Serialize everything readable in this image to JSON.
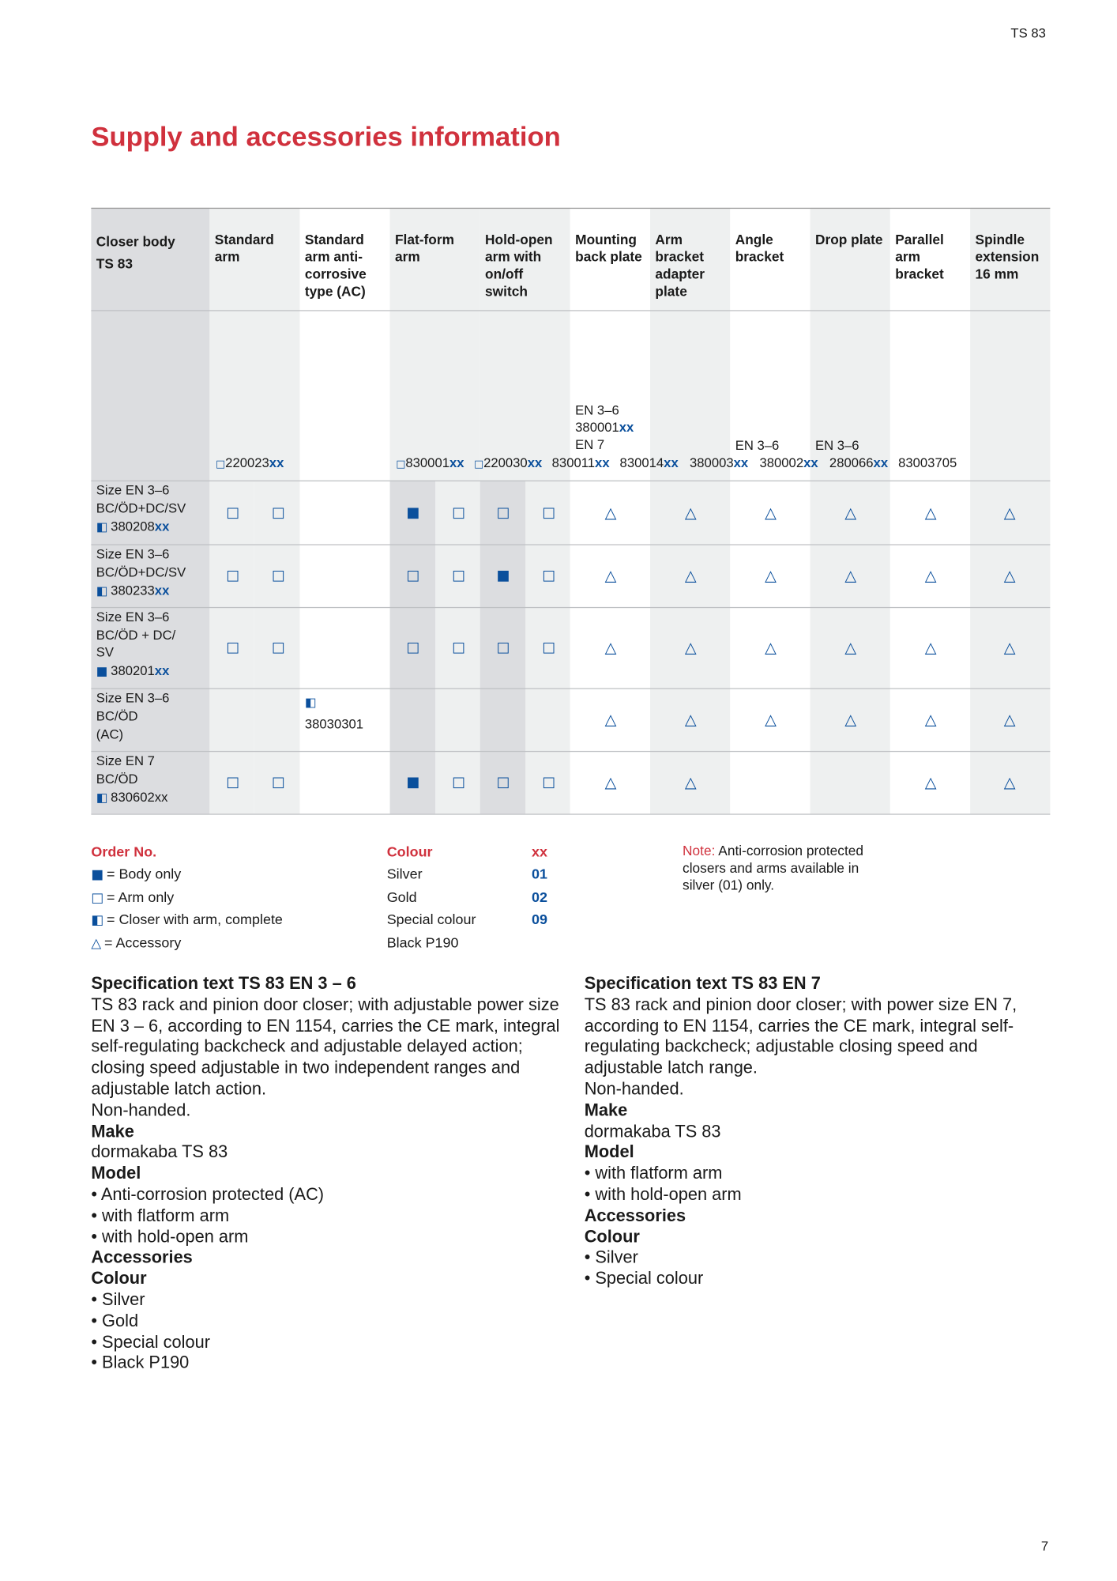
{
  "header": {
    "page_label": "TS 83",
    "page_number": "7"
  },
  "title": "Supply and accessories information",
  "table": {
    "headers": [
      [
        "Closer body",
        "TS 83"
      ],
      [
        "Standard",
        "arm"
      ],
      [
        "Standard",
        "arm anti-",
        "corrosive",
        "type (AC)"
      ],
      [
        "Flat-form",
        "arm"
      ],
      [
        "Hold-open",
        "arm with",
        "on/off",
        "switch"
      ],
      [
        "Mounting",
        "back plate"
      ],
      [
        "Arm",
        "bracket",
        "adapter",
        "plate"
      ],
      [
        "Angle",
        "bracket"
      ],
      [
        "Drop plate"
      ],
      [
        "Parallel",
        "arm",
        "bracket"
      ],
      [
        "Spindle",
        "extension",
        "16 mm"
      ]
    ],
    "variant_labels": [
      "EN 3–6",
      "380001",
      "xx",
      "EN 7",
      "EN 3–6",
      "EN 3–6"
    ],
    "part_numbers": [
      {
        "symbol": "□",
        "number": "220023",
        "suffix": "xx"
      },
      {
        "symbol": "□",
        "number": "830001",
        "suffix": "xx"
      },
      {
        "symbol": "□",
        "number": "220030",
        "suffix": "xx"
      },
      {
        "number": "830011",
        "suffix": "xx"
      },
      {
        "number": "830014",
        "suffix": "xx"
      },
      {
        "number": "380003",
        "suffix": "xx"
      },
      {
        "number": "380002",
        "suffix": "xx"
      },
      {
        "number": "280066",
        "suffix": "xx"
      },
      {
        "number": "83003705"
      }
    ],
    "rows": [
      {
        "label": [
          "Size EN 3–6",
          "BC/ÖD+DC/SV"
        ],
        "symbol": "◧",
        "number": "380208",
        "suffix": "xx",
        "cells": [
          "□",
          "□",
          null,
          "■",
          "□",
          "□",
          "□",
          "△",
          "△",
          "△",
          "△",
          "△",
          "△"
        ]
      },
      {
        "label": [
          "Size EN 3–6",
          "BC/ÖD+DC/SV"
        ],
        "symbol": "◧",
        "number": "380233",
        "suffix": "xx",
        "cells": [
          "□",
          "□",
          null,
          "□",
          "□",
          "■",
          "□",
          "△",
          "△",
          "△",
          "△",
          "△",
          "△"
        ]
      },
      {
        "label": [
          "Size EN 3–6",
          "BC/ÖD + DC/",
          "SV"
        ],
        "symbol": "■",
        "number": "380201",
        "suffix": "xx",
        "cells": [
          "□",
          "□",
          null,
          "□",
          "□",
          "□",
          "□",
          "△",
          "△",
          "△",
          "△",
          "△",
          "△"
        ]
      },
      {
        "label": [
          "Size EN 3–6",
          "BC/ÖD",
          "(AC)"
        ],
        "cells": [
          null,
          null,
          "◧",
          null,
          null,
          null,
          null,
          "△",
          "△",
          "△",
          "△",
          "△",
          "△"
        ],
        "cell_note": "38030301"
      },
      {
        "label": [
          "Size EN 7",
          "BC/ÖD"
        ],
        "symbol": "◧",
        "number": "830602xx",
        "cells": [
          "□",
          "□",
          null,
          "■",
          "□",
          "□",
          "□",
          "△",
          "△",
          null,
          null,
          "△",
          "△"
        ]
      }
    ]
  },
  "legend": {
    "order_heading": "Order No.",
    "order_items": [
      {
        "symbol": "■",
        "text": "= Body only"
      },
      {
        "symbol": "□",
        "text": "= Arm only"
      },
      {
        "symbol": "◧",
        "text": "= Closer with arm, complete"
      },
      {
        "symbol": "△",
        "text": "= Accessory"
      }
    ],
    "colour_heading": "Colour",
    "code_heading": "xx",
    "colours": [
      {
        "name": "Silver",
        "code": "01"
      },
      {
        "name": "Gold",
        "code": "02"
      },
      {
        "name": "Special colour",
        "code": "09"
      },
      {
        "name": "Black P190"
      }
    ],
    "note_label": "Note:",
    "note_text": "Anti-corrosion protected closers and arms available in silver (01) only."
  },
  "specs": [
    {
      "title": "Specification text TS 83 EN 3 – 6",
      "lines": [
        {
          "text": "TS 83 rack and pinion door closer; with adjustable power size EN 3 – 6, according to EN 1154, carries the CE mark, integral self-regulating backcheck and adjustable delayed action; closing speed adjustable in two independent ranges and adjustable latch action."
        },
        {
          "text": "Non-handed."
        },
        {
          "text": "Make",
          "bold": true
        },
        {
          "text": "dormakaba TS 83"
        },
        {
          "text": "Model",
          "bold": true
        },
        {
          "text": "• Anti-corrosion protected (AC)"
        },
        {
          "text": "• with flatform arm"
        },
        {
          "text": "• with hold-open arm"
        },
        {
          "text": "Accessories",
          "bold": true
        },
        {
          "text": "Colour",
          "bold": true
        },
        {
          "text": "• Silver"
        },
        {
          "text": "• Gold"
        },
        {
          "text": "• Special colour"
        },
        {
          "text": "• Black P190"
        }
      ]
    },
    {
      "title": "Specification text TS 83 EN 7",
      "lines": [
        {
          "text": "TS 83 rack and pinion door closer; with power size EN 7, according to EN 1154, carries the CE mark, integral self-regulating backcheck; adjustable closing speed and adjustable latch range."
        },
        {
          "text": "Non-handed."
        },
        {
          "text": "Make",
          "bold": true
        },
        {
          "text": "dormakaba TS 83"
        },
        {
          "text": "Model",
          "bold": true
        },
        {
          "text": "• with flatform arm"
        },
        {
          "text": "• with hold-open arm"
        },
        {
          "text": "Accessories",
          "bold": true
        },
        {
          "text": "Colour",
          "bold": true
        },
        {
          "text": "• Silver"
        },
        {
          "text": "• Special colour"
        }
      ]
    }
  ]
}
